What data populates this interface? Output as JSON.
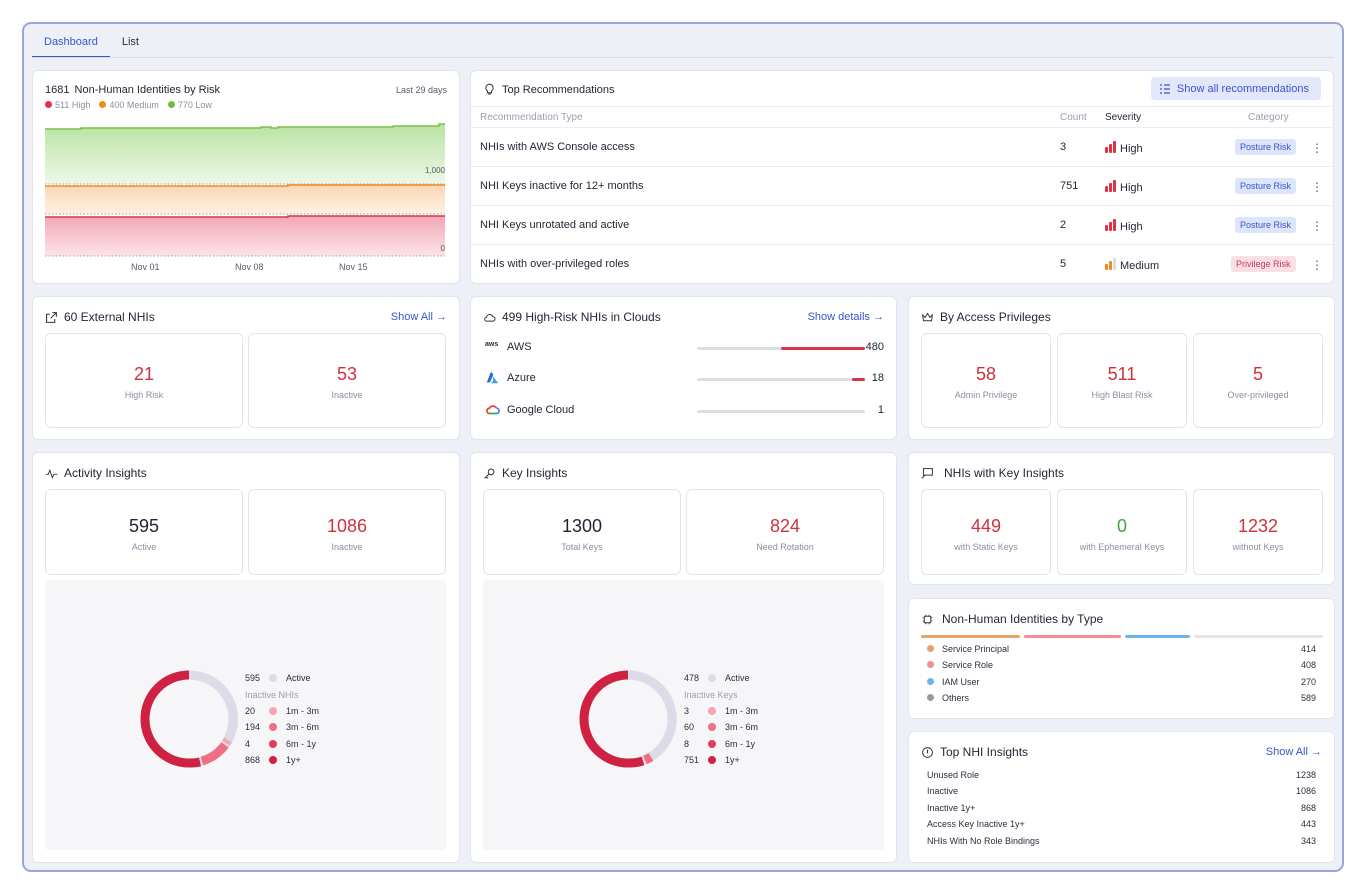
{
  "tabs": [
    "Dashboard",
    "List"
  ],
  "risk": {
    "title_count": "1681",
    "title_text": "Non-Human Identities by Risk",
    "range": "Last 29 days",
    "legend": [
      {
        "label": "511 High",
        "color": "#e0344a"
      },
      {
        "label": "400 Medium",
        "color": "#f08a1c"
      },
      {
        "label": "770 Low",
        "color": "#6fbf3c"
      }
    ],
    "y_labels": [
      "1,000",
      "0"
    ],
    "x_labels": [
      "Nov 01",
      "Nov 08",
      "Nov 15"
    ]
  },
  "recommendations": {
    "title": "Top Recommendations",
    "button": "Show all recommendations",
    "headers": {
      "type": "Recommendation Type",
      "count": "Count",
      "severity": "Severity",
      "category": "Category"
    },
    "rows": [
      {
        "type": "NHIs with AWS Console access",
        "count": "3",
        "severity": "High",
        "category": "Posture Risk"
      },
      {
        "type": "NHI Keys inactive for 12+ months",
        "count": "751",
        "severity": "High",
        "category": "Posture Risk"
      },
      {
        "type": "NHI Keys unrotated and active",
        "count": "2",
        "severity": "High",
        "category": "Posture Risk"
      },
      {
        "type": "NHIs with over-privileged roles",
        "count": "5",
        "severity": "Medium",
        "category": "Privilege Risk"
      }
    ]
  },
  "external": {
    "title": "60 External NHIs",
    "link": "Show All →",
    "stats": [
      {
        "value": "21",
        "label": "High Risk"
      },
      {
        "value": "53",
        "label": "Inactive"
      }
    ]
  },
  "clouds": {
    "title": "499 High-Risk NHIs in Clouds",
    "link": "Show details →",
    "rows": [
      {
        "name": "AWS",
        "value": "480",
        "fraction": 0.5,
        "icon": "aws-logo"
      },
      {
        "name": "Azure",
        "value": "18",
        "fraction": 0.08,
        "icon": "azure-logo"
      },
      {
        "name": "Google Cloud",
        "value": "1",
        "fraction": 0.0,
        "icon": "google-cloud-logo"
      }
    ]
  },
  "privileges": {
    "title": "By Access Privileges",
    "stats": [
      {
        "value": "58",
        "label": "Admin Privilege"
      },
      {
        "value": "511",
        "label": "High Blast Risk"
      },
      {
        "value": "5",
        "label": "Over-privileged"
      }
    ]
  },
  "activity": {
    "title": "Activity Insights",
    "stats": [
      {
        "value": "595",
        "label": "Active"
      },
      {
        "value": "1086",
        "label": "Inactive"
      }
    ],
    "legend_active": {
      "value": "595",
      "label": "Active",
      "color": "#dcdbe8"
    },
    "legend_head": "Inactive NHIs",
    "legend": [
      {
        "value": "20",
        "label": "1m - 3m",
        "color": "#f7a3b1"
      },
      {
        "value": "194",
        "label": "3m - 6m",
        "color": "#ee6f84"
      },
      {
        "value": "4",
        "label": "6m - 1y",
        "color": "#e03d5a"
      },
      {
        "value": "868",
        "label": "1y+",
        "color": "#cf2142"
      }
    ]
  },
  "keys": {
    "title": "Key Insights",
    "stats": [
      {
        "value": "1300",
        "label": "Total Keys"
      },
      {
        "value": "824",
        "label": "Need Rotation"
      }
    ],
    "legend_active": {
      "value": "478",
      "label": "Active",
      "color": "#dcdbe8"
    },
    "legend_head": "Inactive Keys",
    "legend": [
      {
        "value": "3",
        "label": "1m - 3m",
        "color": "#f7a3b1"
      },
      {
        "value": "60",
        "label": "3m - 6m",
        "color": "#ee6f84"
      },
      {
        "value": "8",
        "label": "6m - 1y",
        "color": "#e03d5a"
      },
      {
        "value": "751",
        "label": "1y+",
        "color": "#cf2142"
      }
    ]
  },
  "key_nhis": {
    "title": "NHIs with Key Insights",
    "stats": [
      {
        "value": "449",
        "label": "with Static Keys"
      },
      {
        "value": "0",
        "label": "with Ephemeral Keys"
      },
      {
        "value": "1232",
        "label": "without Keys"
      }
    ]
  },
  "types": {
    "title": "Non-Human Identities by Type",
    "rows": [
      {
        "label": "Service Principal",
        "value": "414",
        "color": "#e3a468"
      },
      {
        "label": "Service Role",
        "value": "408",
        "color": "#ee8f92"
      },
      {
        "label": "IAM User",
        "value": "270",
        "color": "#6bb6e6"
      },
      {
        "label": "Others",
        "value": "589",
        "color": "#9a9a9a"
      }
    ]
  },
  "top_insights": {
    "title": "Top NHI Insights",
    "link": "Show All →",
    "rows": [
      {
        "label": "Unused Role",
        "value": "1238"
      },
      {
        "label": "Inactive",
        "value": "1086"
      },
      {
        "label": "Inactive 1y+",
        "value": "868"
      },
      {
        "label": "Access Key Inactive 1y+",
        "value": "443"
      },
      {
        "label": "NHIs With No Role Bindings",
        "value": "343"
      }
    ]
  }
}
